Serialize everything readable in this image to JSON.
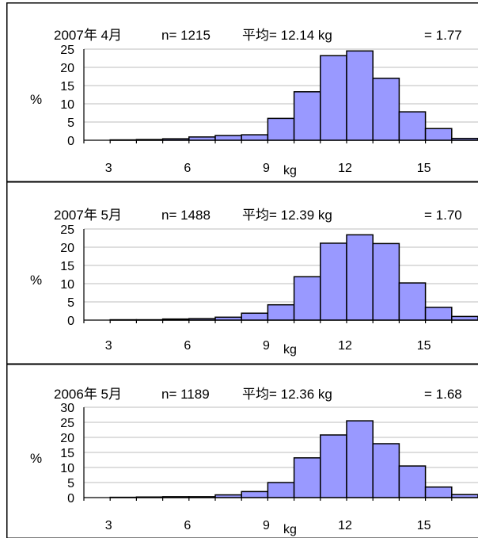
{
  "colors": {
    "bar_fill": "#9999ff",
    "bar_stroke": "#000000",
    "grid": "#bdbdbd"
  },
  "chart_data": [
    {
      "type": "bar",
      "title": {
        "date": "2007年 4月",
        "n": "n= 1215",
        "mean": "平均= 12.14 kg",
        "sd": "= 1.77"
      },
      "ylabel": "%",
      "xunit": "kg",
      "ylim": [
        0,
        25
      ],
      "yticks": [
        0,
        5,
        10,
        15,
        20,
        25
      ],
      "xticks": [
        3,
        6,
        9,
        12,
        15
      ],
      "bin_start": 2.5,
      "bin_width": 1,
      "values": [
        0,
        0.1,
        0.2,
        0.4,
        0.9,
        1.3,
        1.5,
        6,
        13.3,
        23.2,
        24.5,
        17,
        7.8,
        3.2,
        0.5
      ],
      "grid": true
    },
    {
      "type": "bar",
      "title": {
        "date": "2007年  5月",
        "n": "n= 1488",
        "mean": "平均= 12.39 kg",
        "sd": "= 1.70"
      },
      "ylabel": "%",
      "xunit": "kg",
      "ylim": [
        0,
        25
      ],
      "yticks": [
        0,
        5,
        10,
        15,
        20,
        25
      ],
      "xticks": [
        3,
        6,
        9,
        12,
        15
      ],
      "bin_start": 2.5,
      "bin_width": 1,
      "values": [
        0,
        0.1,
        0.1,
        0.3,
        0.4,
        0.8,
        1.9,
        4.2,
        11.9,
        21.1,
        23.4,
        21,
        10.2,
        3.5,
        1
      ],
      "grid": true
    },
    {
      "type": "bar",
      "title": {
        "date": "2006年  5月",
        "n": "n= 1189",
        "mean": "平均= 12.36 kg",
        "sd": "= 1.68"
      },
      "ylabel": "%",
      "xunit": "kg",
      "ylim": [
        0,
        30
      ],
      "yticks": [
        0,
        5,
        10,
        15,
        20,
        25,
        30
      ],
      "xticks": [
        3,
        6,
        9,
        12,
        15
      ],
      "bin_start": 2.5,
      "bin_width": 1,
      "values": [
        0,
        0.1,
        0.2,
        0.3,
        0.3,
        0.9,
        2,
        5,
        13.2,
        20.8,
        25.5,
        17.9,
        10.5,
        3.5,
        1
      ],
      "grid": true
    }
  ]
}
